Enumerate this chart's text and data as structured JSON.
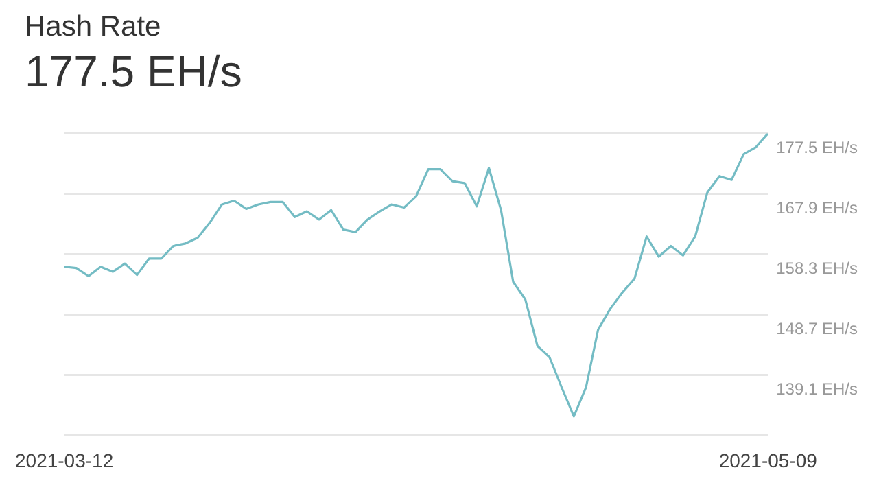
{
  "chart_data": {
    "type": "line",
    "title": "Hash Rate",
    "subtitle": "177.5 EH/s",
    "categories": [
      "2021-03-12",
      null,
      null,
      null,
      null,
      null,
      null,
      null,
      null,
      null,
      null,
      null,
      null,
      null,
      null,
      null,
      null,
      null,
      null,
      null,
      null,
      null,
      null,
      null,
      null,
      null,
      null,
      null,
      null,
      null,
      null,
      null,
      null,
      null,
      null,
      null,
      null,
      null,
      null,
      null,
      null,
      null,
      null,
      null,
      null,
      null,
      null,
      null,
      null,
      null,
      null,
      null,
      null,
      null,
      null,
      null,
      null,
      null,
      "2021-05-09"
    ],
    "series": [
      {
        "color": "#74bcc4",
        "values": [
          156.3,
          156.1,
          154.8,
          156.3,
          155.5,
          156.8,
          155.0,
          157.6,
          157.6,
          159.6,
          160.0,
          160.9,
          163.3,
          166.2,
          166.8,
          165.5,
          166.2,
          166.6,
          166.6,
          164.2,
          165.1,
          163.8,
          165.3,
          162.2,
          161.8,
          163.8,
          165.1,
          166.2,
          165.7,
          167.5,
          171.8,
          171.8,
          169.9,
          169.6,
          165.9,
          172.0,
          165.3,
          153.9,
          151.1,
          143.7,
          141.9,
          137.1,
          132.5,
          137.1,
          146.3,
          149.6,
          152.2,
          154.4,
          161.1,
          157.9,
          159.6,
          158.1,
          161.1,
          168.1,
          170.7,
          170.1,
          174.2,
          175.3,
          177.5
        ]
      }
    ],
    "ylim": [
      129.5,
      177.5
    ],
    "yticks": [
      {
        "value": 129.5,
        "label": null
      },
      {
        "value": 139.1,
        "label": "139.1 EH/s"
      },
      {
        "value": 148.7,
        "label": "148.7 EH/s"
      },
      {
        "value": 158.3,
        "label": "158.3 EH/s"
      },
      {
        "value": 167.9,
        "label": "167.9 EH/s"
      },
      {
        "value": 177.5,
        "label": "177.5 EH/s"
      }
    ],
    "grid": "y",
    "legend": false,
    "marker": "none",
    "line_style": "solid"
  }
}
